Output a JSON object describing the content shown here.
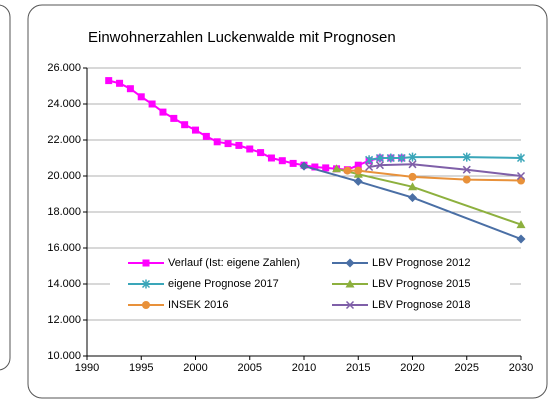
{
  "chart_data": {
    "type": "line",
    "title": "Einwohnerzahlen Luckenwalde mit Prognosen",
    "xlim": [
      1990,
      2030
    ],
    "xticks": [
      1990,
      1995,
      2000,
      2005,
      2010,
      2015,
      2020,
      2025,
      2030
    ],
    "ylim": [
      10000,
      26000
    ],
    "yticks": [
      {
        "value": 10000,
        "label": "10.000"
      },
      {
        "value": 12000,
        "label": "12.000"
      },
      {
        "value": 14000,
        "label": "14.000"
      },
      {
        "value": 16000,
        "label": "16.000"
      },
      {
        "value": 18000,
        "label": "18.000"
      },
      {
        "value": 20000,
        "label": "20.000"
      },
      {
        "value": 22000,
        "label": "22.000"
      },
      {
        "value": 24000,
        "label": "24.000"
      },
      {
        "value": 26000,
        "label": "26.000"
      }
    ],
    "grid": true,
    "legend": "bottom-left",
    "series": [
      {
        "name": "Verlauf (Ist: eigene Zahlen)",
        "color": "#ff00ff",
        "marker": "square",
        "x": [
          1992,
          1993,
          1994,
          1995,
          1996,
          1997,
          1998,
          1999,
          2000,
          2001,
          2002,
          2003,
          2004,
          2005,
          2006,
          2007,
          2008,
          2009,
          2010,
          2011,
          2012,
          2013,
          2014,
          2015,
          2016,
          2017,
          2018,
          2019
        ],
        "values": [
          25300,
          25150,
          24850,
          24400,
          24000,
          23550,
          23200,
          22850,
          22550,
          22200,
          21900,
          21800,
          21700,
          21500,
          21300,
          21000,
          20850,
          20700,
          20600,
          20500,
          20450,
          20400,
          20350,
          20600,
          20850,
          21000,
          21000,
          21000
        ]
      },
      {
        "name": "LBV Prognose 2012",
        "color": "#4a6fa5",
        "marker": "diamond",
        "x": [
          2010,
          2015,
          2020,
          2030
        ],
        "values": [
          20550,
          19700,
          18800,
          16500
        ]
      },
      {
        "name": "eigene Prognose 2017",
        "color": "#3aa6b9",
        "marker": "star",
        "x": [
          2016,
          2017,
          2018,
          2019,
          2020,
          2025,
          2030
        ],
        "values": [
          20900,
          21000,
          21000,
          21000,
          21050,
          21050,
          21000
        ]
      },
      {
        "name": "LBV Prognose 2015",
        "color": "#8db03e",
        "marker": "triangle",
        "x": [
          2013,
          2015,
          2020,
          2030
        ],
        "values": [
          20400,
          20100,
          19400,
          17300
        ]
      },
      {
        "name": "INSEK 2016",
        "color": "#e8913a",
        "marker": "circle",
        "x": [
          2014,
          2015,
          2020,
          2025,
          2030
        ],
        "values": [
          20300,
          20300,
          19950,
          19800,
          19750
        ]
      },
      {
        "name": "LBV Prognose 2018",
        "color": "#7f5fa8",
        "marker": "cross",
        "x": [
          2016,
          2017,
          2020,
          2025,
          2030
        ],
        "values": [
          20500,
          20600,
          20650,
          20350,
          20000
        ]
      }
    ]
  }
}
